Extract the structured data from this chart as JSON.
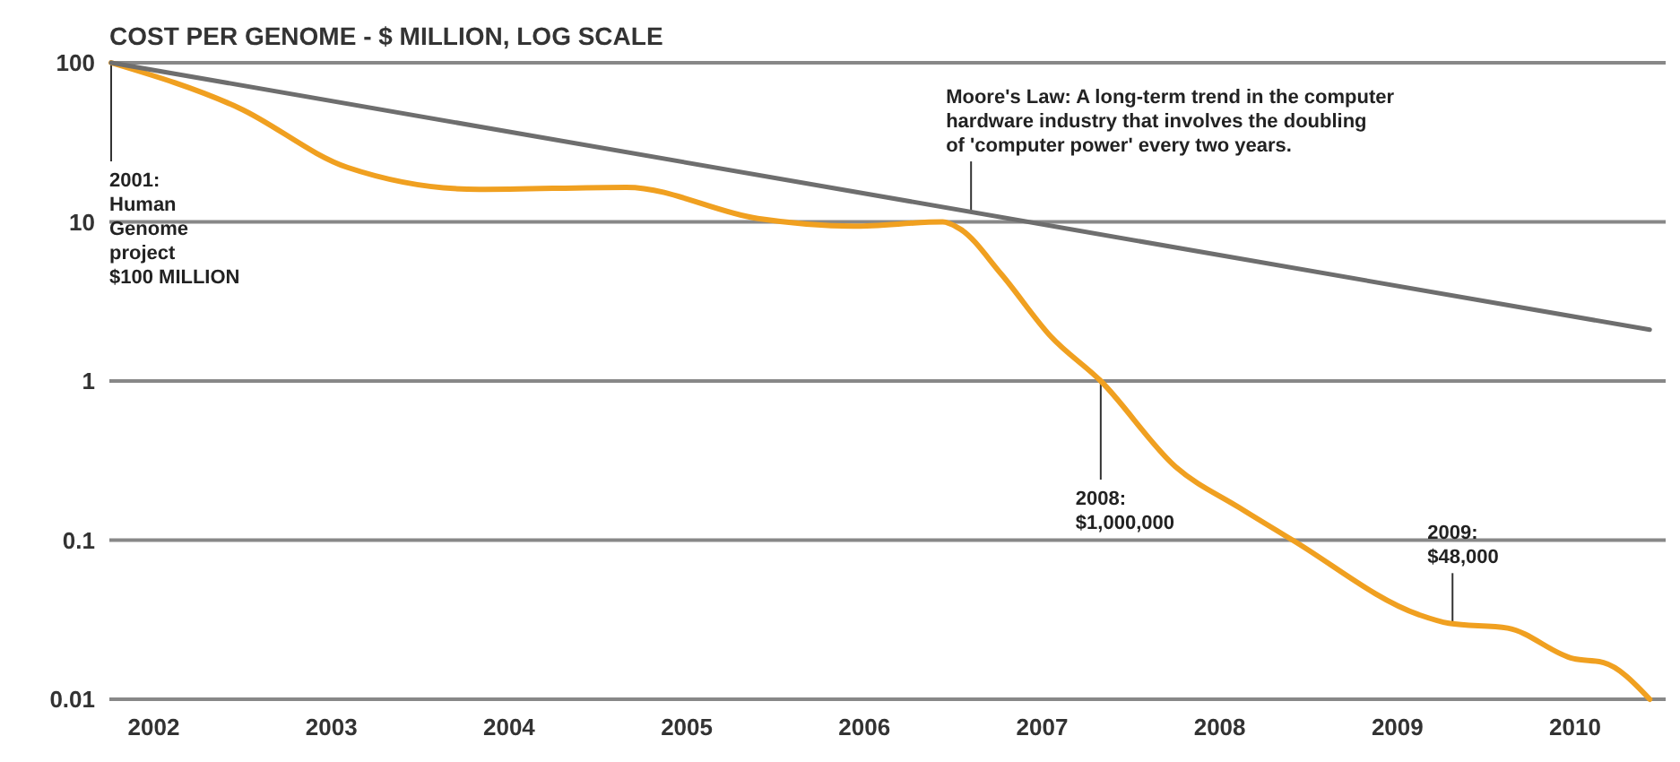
{
  "chart_data": {
    "type": "line",
    "title": "COST PER GENOME - $ MILLION, LOG SCALE",
    "x": [
      2001.76,
      2002.48,
      2003.09,
      2003.83,
      2004.66,
      2005.4,
      2005.94,
      2006.44,
      2006.54,
      2006.77,
      2007.05,
      2007.33,
      2007.75,
      2008.11,
      2008.41,
      2009.12,
      2009.29,
      2009.62,
      2009.99,
      2010.16,
      2010.42
    ],
    "series": [
      {
        "color": "#f0a020",
        "values": [
          100,
          52,
          22,
          16,
          16.5,
          10.5,
          9.4,
          10,
          9,
          4.7,
          1.9,
          1,
          0.29,
          0.16,
          0.1,
          0.034,
          0.03,
          0.028,
          0.018,
          0.017,
          0.01
        ]
      },
      {
        "color": "#6e6e6e",
        "x": [
          2001.76,
          2010.42
        ],
        "values": [
          100,
          2.1
        ]
      }
    ],
    "log": "y",
    "grid": "y",
    "xlim": [
      2001.75,
      2010.55
    ],
    "ylim": [
      0.01,
      100
    ],
    "xticks": [
      2002,
      2003,
      2004,
      2005,
      2006,
      2007,
      2008,
      2009,
      2010
    ],
    "yticks": [
      0.01,
      0.1,
      1,
      10,
      100
    ],
    "annotations": [
      {
        "text": "2001:\nHuman\nGenome\nproject\n$100 MILLION",
        "x": 2001.76,
        "y": 100
      },
      {
        "text": "Moore's Law: A long-term trend in the computer\nhardware industry that involves the doubling\nof 'computer power' every two years.",
        "x": 2006.6,
        "y": 11.6
      },
      {
        "text": "2008:\n$1,000,000",
        "x": 2007.33,
        "y": 1
      },
      {
        "text": "2009:\n$48,000",
        "x": 2009.31,
        "y": 0.03
      }
    ]
  }
}
